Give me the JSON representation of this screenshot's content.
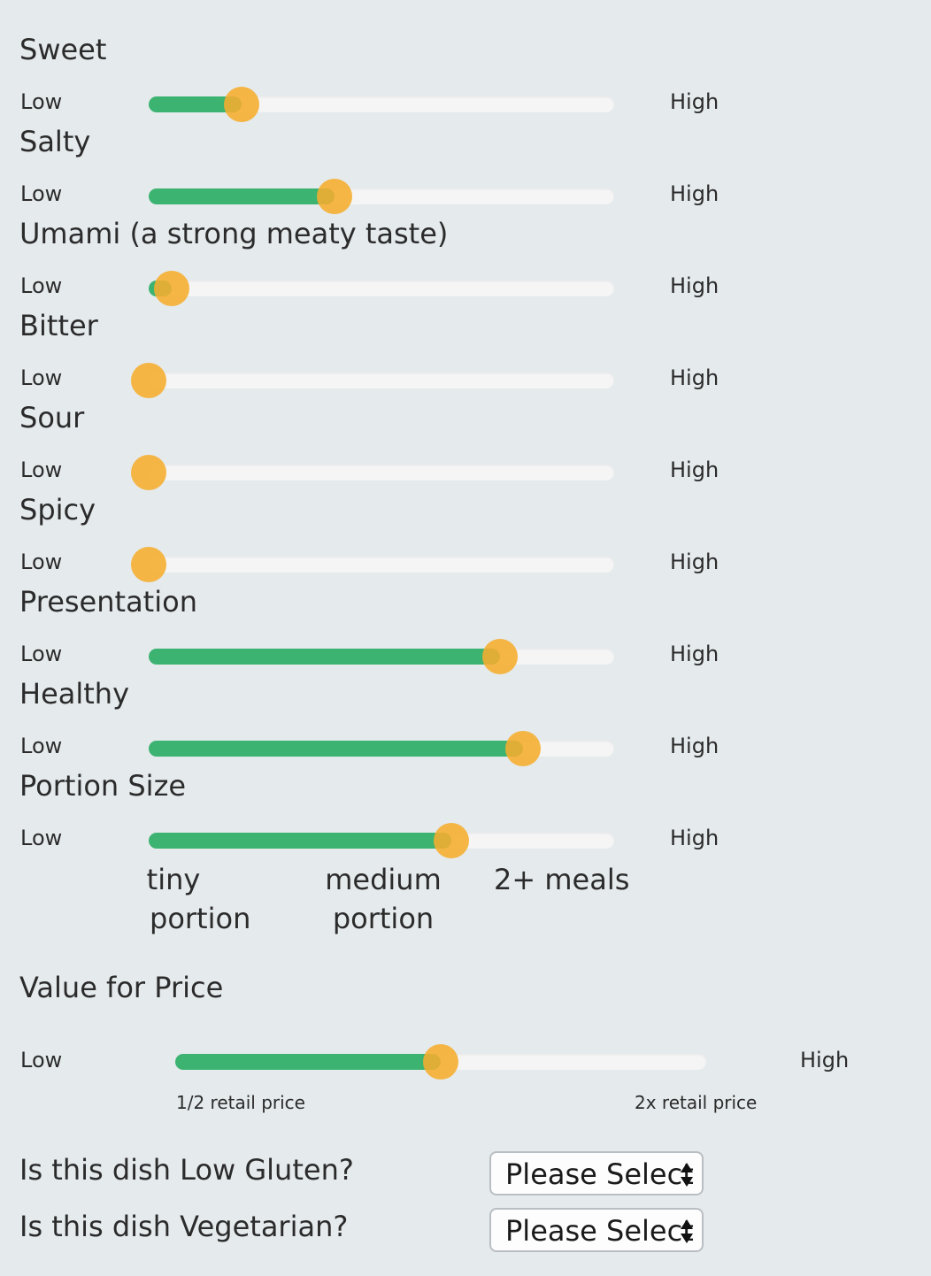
{
  "sliders": [
    {
      "title": "Sweet",
      "low": "Low",
      "high": "High",
      "value": 0.2
    },
    {
      "title": "Salty",
      "low": "Low",
      "high": "High",
      "value": 0.4
    },
    {
      "title": "Umami (a strong meaty taste)",
      "low": "Low",
      "high": "High",
      "value": 0.05
    },
    {
      "title": "Bitter",
      "low": "Low",
      "high": "High",
      "value": 0.0
    },
    {
      "title": "Sour",
      "low": "Low",
      "high": "High",
      "value": 0.0
    },
    {
      "title": "Spicy",
      "low": "Low",
      "high": "High",
      "value": 0.0
    },
    {
      "title": "Presentation",
      "low": "Low",
      "high": "High",
      "value": 0.755
    },
    {
      "title": "Healthy",
      "low": "Low",
      "high": "High",
      "value": 0.805
    },
    {
      "title": "Portion Size",
      "low": "Low",
      "high": "High",
      "value": 0.65
    }
  ],
  "portion_ticks": [
    {
      "line1": "tiny",
      "line2": "portion"
    },
    {
      "line1": "medium",
      "line2": "portion"
    },
    {
      "line1": "2+ meals",
      "line2": ""
    }
  ],
  "value_for_price": {
    "title": "Value for Price",
    "low": "Low",
    "high": "High",
    "value": 0.5,
    "min_note": "1/2 retail price",
    "max_note": "2x retail price"
  },
  "questions": [
    {
      "label": "Is this dish Low Gluten?",
      "select_value": "Please Select"
    },
    {
      "label": "Is this dish Vegetarian?",
      "select_value": "Please Select"
    }
  ],
  "colors": {
    "fill": "#3cb371",
    "thumb": "#f6ad2e",
    "track": "#f5f5f5",
    "background": "#e5eaed"
  }
}
